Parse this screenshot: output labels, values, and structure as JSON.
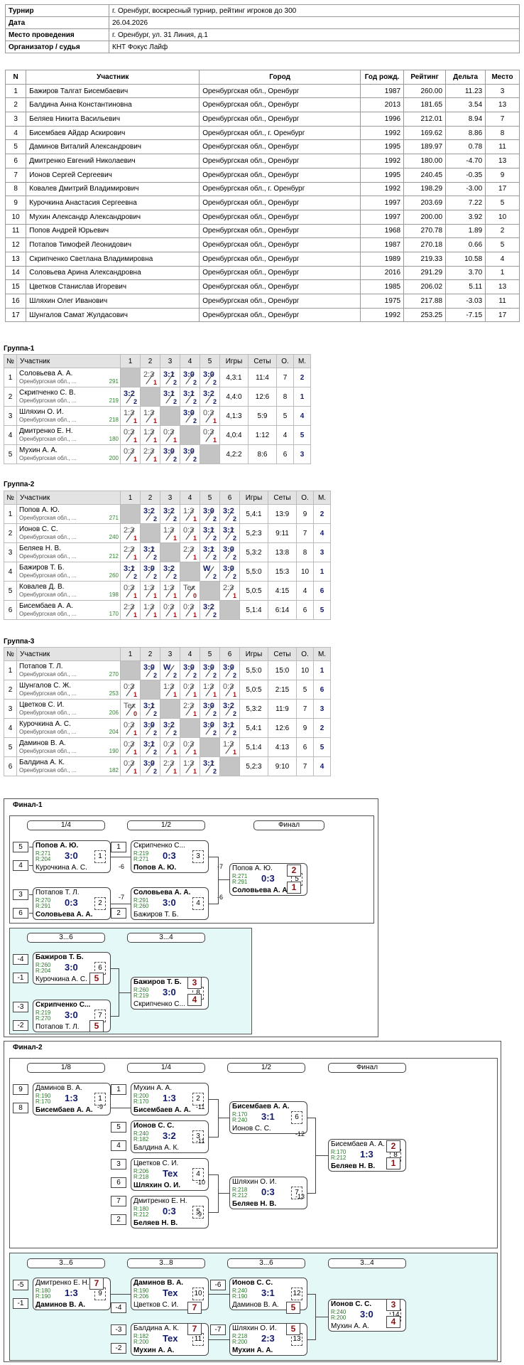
{
  "info": [
    [
      "Турнир",
      "г. Оренбург, воскресный турнир, рейтинг игроков до 300"
    ],
    [
      "Дата",
      "26.04.2026"
    ],
    [
      "Место проведения",
      "г. Оренбург, ул. 31 Линия, д.1"
    ],
    [
      "Организатор / судья",
      "КНТ Фокус Лайф"
    ]
  ],
  "participants": {
    "headers": [
      "N",
      "Участник",
      "Город",
      "Год рожд.",
      "Рейтинг",
      "Дельта",
      "Место"
    ],
    "rows": [
      [
        "1",
        "Бажиров Талгат Бисембаевич",
        "Оренбургская обл., Оренбург",
        "1987",
        "260.00",
        "11.23",
        "3"
      ],
      [
        "2",
        "Балдина Анна Константиновна",
        "Оренбургская обл., Оренбург",
        "2013",
        "181.65",
        "3.54",
        "13"
      ],
      [
        "3",
        "Беляев Никита Васильевич",
        "Оренбургская обл., Оренбург",
        "1996",
        "212.01",
        "8.94",
        "7"
      ],
      [
        "4",
        "Бисембаев Айдар Аскирович",
        "Оренбургская обл., г. Оренбург",
        "1992",
        "169.62",
        "8.86",
        "8"
      ],
      [
        "5",
        "Даминов Виталий Александрович",
        "Оренбургская обл., Оренбург",
        "1995",
        "189.97",
        "0.78",
        "11"
      ],
      [
        "6",
        "Дмитренко Евгений Николаевич",
        "Оренбургская обл., Оренбург",
        "1992",
        "180.00",
        "-4.70",
        "13"
      ],
      [
        "7",
        "Ионов Сергей Сергеевич",
        "Оренбургская обл., Оренбург",
        "1995",
        "240.45",
        "-0.35",
        "9"
      ],
      [
        "8",
        "Ковалев Дмитрий Владимирович",
        "Оренбургская обл., г. Оренбург",
        "1992",
        "198.29",
        "-3.00",
        "17"
      ],
      [
        "9",
        "Курочкина Анастасия Сергеевна",
        "Оренбургская обл., Оренбург",
        "1997",
        "203.69",
        "7.22",
        "5"
      ],
      [
        "10",
        "Мухин Александр Александрович",
        "Оренбургская обл., Оренбург",
        "1997",
        "200.00",
        "3.92",
        "10"
      ],
      [
        "11",
        "Попов Андрей Юрьевич",
        "Оренбургская обл., Оренбург",
        "1968",
        "270.78",
        "1.89",
        "2"
      ],
      [
        "12",
        "Потапов Тимофей Леонидович",
        "Оренбургская обл., Оренбург",
        "1987",
        "270.18",
        "0.66",
        "5"
      ],
      [
        "13",
        "Скрипченко Светлана Владимировна",
        "Оренбургская обл., Оренбург",
        "1989",
        "219.33",
        "10.58",
        "4"
      ],
      [
        "14",
        "Соловьева Арина Александровна",
        "Оренбургская обл., Оренбург",
        "2016",
        "291.29",
        "3.70",
        "1"
      ],
      [
        "15",
        "Цветков Станислав Игоревич",
        "Оренбургская обл., Оренбург",
        "1985",
        "206.02",
        "5.11",
        "13"
      ],
      [
        "16",
        "Шляхин Олег Иванович",
        "Оренбургская обл., Оренбург",
        "1975",
        "217.88",
        "-3.03",
        "11"
      ],
      [
        "17",
        "Шунгалов Самат Жулдасович",
        "Оренбургская обл., Оренбург",
        "1992",
        "253.25",
        "-7.15",
        "17"
      ]
    ]
  },
  "groups": [
    {
      "title": "Группа-1",
      "headers": [
        "№",
        "Участник",
        "1",
        "2",
        "3",
        "4",
        "5",
        "Игры",
        "Сеты",
        "О.",
        "М."
      ],
      "rows": [
        {
          "n": "1",
          "name": "Соловьева А. А.",
          "reg": "Оренбургская обл., ...",
          "rating": "291",
          "cells": [
            null,
            [
              "2:3",
              "1"
            ],
            [
              "3:1",
              "2"
            ],
            [
              "3:0",
              "2"
            ],
            [
              "3:0",
              "2"
            ]
          ],
          "games": "4,3:1",
          "sets": "11:4",
          "pts": "7",
          "place": "2"
        },
        {
          "n": "2",
          "name": "Скрипченко С. В.",
          "reg": "Оренбургская обл., ...",
          "rating": "219",
          "cells": [
            [
              "3:2",
              "2"
            ],
            null,
            [
              "3:1",
              "2"
            ],
            [
              "3:1",
              "2"
            ],
            [
              "3:2",
              "2"
            ]
          ],
          "games": "4,4:0",
          "sets": "12:6",
          "pts": "8",
          "place": "1"
        },
        {
          "n": "3",
          "name": "Шляхин О. И.",
          "reg": "Оренбургская обл., ...",
          "rating": "218",
          "cells": [
            [
              "1:3",
              "1"
            ],
            [
              "1:3",
              "1"
            ],
            null,
            [
              "3:0",
              "2"
            ],
            [
              "0:3",
              "1"
            ]
          ],
          "games": "4,1:3",
          "sets": "5:9",
          "pts": "5",
          "place": "4"
        },
        {
          "n": "4",
          "name": "Дмитренко Е. Н.",
          "reg": "Оренбургская обл., ...",
          "rating": "180",
          "cells": [
            [
              "0:3",
              "1"
            ],
            [
              "1:3",
              "1"
            ],
            [
              "0:3",
              "1"
            ],
            null,
            [
              "0:3",
              "1"
            ]
          ],
          "games": "4,0:4",
          "sets": "1:12",
          "pts": "4",
          "place": "5"
        },
        {
          "n": "5",
          "name": "Мухин А. А.",
          "reg": "Оренбургская обл., ...",
          "rating": "200",
          "cells": [
            [
              "0:3",
              "1"
            ],
            [
              "2:3",
              "1"
            ],
            [
              "3:0",
              "2"
            ],
            [
              "3:0",
              "2"
            ],
            null
          ],
          "games": "4,2:2",
          "sets": "8:6",
          "pts": "6",
          "place": "3"
        }
      ]
    },
    {
      "title": "Группа-2",
      "headers": [
        "№",
        "Участник",
        "1",
        "2",
        "3",
        "4",
        "5",
        "6",
        "Игры",
        "Сеты",
        "О.",
        "М."
      ],
      "rows": [
        {
          "n": "1",
          "name": "Попов А. Ю.",
          "reg": "Оренбургская обл., ...",
          "rating": "271",
          "cells": [
            null,
            [
              "3:2",
              "2"
            ],
            [
              "3:2",
              "2"
            ],
            [
              "1:3",
              "1"
            ],
            [
              "3:0",
              "2"
            ],
            [
              "3:2",
              "2"
            ]
          ],
          "games": "5,4:1",
          "sets": "13:9",
          "pts": "9",
          "place": "2"
        },
        {
          "n": "2",
          "name": "Ионов С. С.",
          "reg": "Оренбургская обл., ...",
          "rating": "240",
          "cells": [
            [
              "2:3",
              "1"
            ],
            null,
            [
              "1:3",
              "1"
            ],
            [
              "0:3",
              "1"
            ],
            [
              "3:1",
              "2"
            ],
            [
              "3:1",
              "2"
            ]
          ],
          "games": "5,2:3",
          "sets": "9:11",
          "pts": "7",
          "place": "4"
        },
        {
          "n": "3",
          "name": "Беляев Н. В.",
          "reg": "Оренбургская обл., ...",
          "rating": "212",
          "cells": [
            [
              "2:3",
              "1"
            ],
            [
              "3:1",
              "2"
            ],
            null,
            [
              "2:3",
              "1"
            ],
            [
              "3:1",
              "2"
            ],
            [
              "3:0",
              "2"
            ]
          ],
          "games": "5,3:2",
          "sets": "13:8",
          "pts": "8",
          "place": "3"
        },
        {
          "n": "4",
          "name": "Бажиров Т. Б.",
          "reg": "Оренбургская обл., ...",
          "rating": "260",
          "cells": [
            [
              "3:1",
              "2"
            ],
            [
              "3:0",
              "2"
            ],
            [
              "3:2",
              "2"
            ],
            null,
            [
              "W",
              "2"
            ],
            [
              "3:0",
              "2"
            ]
          ],
          "games": "5,5:0",
          "sets": "15:3",
          "pts": "10",
          "place": "1"
        },
        {
          "n": "5",
          "name": "Ковалев Д. В.",
          "reg": "Оренбургская обл., ...",
          "rating": "198",
          "cells": [
            [
              "0:3",
              "1"
            ],
            [
              "1:3",
              "1"
            ],
            [
              "1:3",
              "1"
            ],
            [
              "Tex",
              "0"
            ],
            null,
            [
              "2:3",
              "1"
            ]
          ],
          "games": "5,0:5",
          "sets": "4:15",
          "pts": "4",
          "place": "6"
        },
        {
          "n": "6",
          "name": "Бисембаев А. А.",
          "reg": "Оренбургская обл., ...",
          "rating": "170",
          "cells": [
            [
              "2:3",
              "1"
            ],
            [
              "1:3",
              "1"
            ],
            [
              "0:3",
              "1"
            ],
            [
              "0:3",
              "1"
            ],
            [
              "3:2",
              "2"
            ],
            null
          ],
          "games": "5,1:4",
          "sets": "6:14",
          "pts": "6",
          "place": "5"
        }
      ]
    },
    {
      "title": "Группа-3",
      "headers": [
        "№",
        "Участник",
        "1",
        "2",
        "3",
        "4",
        "5",
        "6",
        "Игры",
        "Сеты",
        "О.",
        "М."
      ],
      "rows": [
        {
          "n": "1",
          "name": "Потапов Т. Л.",
          "reg": "Оренбургская обл., ...",
          "rating": "270",
          "cells": [
            null,
            [
              "3:0",
              "2"
            ],
            [
              "W",
              "2"
            ],
            [
              "3:0",
              "2"
            ],
            [
              "3:0",
              "2"
            ],
            [
              "3:0",
              "2"
            ]
          ],
          "games": "5,5:0",
          "sets": "15:0",
          "pts": "10",
          "place": "1"
        },
        {
          "n": "2",
          "name": "Шунгалов С. Ж.",
          "reg": "Оренбургская обл., ...",
          "rating": "253",
          "cells": [
            [
              "0:3",
              "1"
            ],
            null,
            [
              "1:3",
              "1"
            ],
            [
              "0:3",
              "1"
            ],
            [
              "1:3",
              "1"
            ],
            [
              "0:3",
              "1"
            ]
          ],
          "games": "5,0:5",
          "sets": "2:15",
          "pts": "5",
          "place": "6"
        },
        {
          "n": "3",
          "name": "Цветков С. И.",
          "reg": "Оренбургская обл., ...",
          "rating": "206",
          "cells": [
            [
              "Tex",
              "0"
            ],
            [
              "3:1",
              "2"
            ],
            null,
            [
              "2:3",
              "1"
            ],
            [
              "3:0",
              "2"
            ],
            [
              "3:2",
              "2"
            ]
          ],
          "games": "5,3:2",
          "sets": "11:9",
          "pts": "7",
          "place": "3"
        },
        {
          "n": "4",
          "name": "Курочкина А. С.",
          "reg": "Оренбургская обл., ...",
          "rating": "204",
          "cells": [
            [
              "0:3",
              "1"
            ],
            [
              "3:0",
              "2"
            ],
            [
              "3:2",
              "2"
            ],
            null,
            [
              "3:0",
              "2"
            ],
            [
              "3:1",
              "2"
            ]
          ],
          "games": "5,4:1",
          "sets": "12:6",
          "pts": "9",
          "place": "2"
        },
        {
          "n": "5",
          "name": "Даминов В. А.",
          "reg": "Оренбургская обл., ...",
          "rating": "190",
          "cells": [
            [
              "0:3",
              "1"
            ],
            [
              "3:1",
              "2"
            ],
            [
              "0:3",
              "1"
            ],
            [
              "0:3",
              "1"
            ],
            null,
            [
              "1:3",
              "1"
            ]
          ],
          "games": "5,1:4",
          "sets": "4:13",
          "pts": "6",
          "place": "5"
        },
        {
          "n": "6",
          "name": "Балдина А. К.",
          "reg": "Оренбургская обл., ...",
          "rating": "182",
          "cells": [
            [
              "0:3",
              "1"
            ],
            [
              "3:0",
              "2"
            ],
            [
              "2:3",
              "1"
            ],
            [
              "1:3",
              "1"
            ],
            [
              "3:1",
              "2"
            ],
            null
          ],
          "games": "5,2:3",
          "sets": "9:10",
          "pts": "7",
          "place": "4"
        }
      ]
    }
  ],
  "final1": {
    "title": "Финал-1",
    "rounds": [
      "1/4",
      "1/2",
      "Финал"
    ],
    "rounds2": [
      "3...6",
      "3...4"
    ],
    "m": [
      {
        "top": "Попов А. Ю.",
        "bot": "Курочкина А. С.",
        "r1": "R:271",
        "r2": "R:204",
        "score": "3:0",
        "num": "1",
        "win": "top"
      },
      {
        "top": "Потапов Т. Л.",
        "bot": "Соловьева А. А.",
        "r1": "R:270",
        "r2": "R:291",
        "score": "0:3",
        "num": "2",
        "win": "bot"
      },
      {
        "top": "Скрипченко С...",
        "bot": "Попов А. Ю.",
        "r1": "R:219",
        "r2": "R:271",
        "score": "0:3",
        "num": "3",
        "win": "bot"
      },
      {
        "top": "Соловьева А. А.",
        "bot": "Бажиров Т. Б.",
        "r1": "R:291",
        "r2": "R:260",
        "score": "3:0",
        "num": "4",
        "win": "top"
      },
      {
        "top": "Попов А. Ю.",
        "bot": "Соловьева А. А.",
        "r1": "R:271",
        "r2": "R:291",
        "score": "0:3",
        "num": "5",
        "win": "bot"
      },
      {
        "top": "Бажиров Т. Б.",
        "bot": "Курочкина А. С.",
        "r1": "R:260",
        "r2": "R:204",
        "score": "3:0",
        "num": "6",
        "win": "top"
      },
      {
        "top": "Скрипченко С...",
        "bot": "Потапов Т. Л.",
        "r1": "R:219",
        "r2": "R:270",
        "score": "3:0",
        "num": "7",
        "win": "top"
      },
      {
        "top": "Бажиров Т. Б.",
        "bot": "Скрипченко С...",
        "r1": "R:260",
        "r2": "R:219",
        "score": "3:0",
        "num": "8",
        "win": "top"
      }
    ],
    "seeds": [
      "5",
      "4",
      "3",
      "6",
      "1",
      "2",
      "-4",
      "-1",
      "-3",
      "-2"
    ],
    "refs": [
      "-6",
      "-7",
      "-7",
      "-6"
    ],
    "places": [
      "2",
      "1",
      "5",
      "5",
      "3",
      "4"
    ]
  },
  "final2": {
    "title": "Финал-2",
    "rounds": [
      "1/8",
      "1/4",
      "1/2",
      "Финал"
    ],
    "rounds2": [
      "3...6",
      "3...8",
      "3...6",
      "3...4"
    ],
    "m": [
      {
        "top": "Даминов В. А.",
        "bot": "Бисембаев А. А.",
        "r1": "R:190",
        "r2": "R:170",
        "score": "1:3",
        "num": "1",
        "win": "bot"
      },
      {
        "top": "Мухин А. А.",
        "bot": "Бисембаев А. А.",
        "r1": "R:200",
        "r2": "R:170",
        "score": "1:3",
        "num": "2",
        "win": "bot"
      },
      {
        "top": "Ионов С. С.",
        "bot": "Балдина А. К.",
        "r1": "R:240",
        "r2": "R:182",
        "score": "3:2",
        "num": "3",
        "win": "top"
      },
      {
        "top": "Цветков С. И.",
        "bot": "Шляхин О. И.",
        "r1": "R:206",
        "r2": "R:218",
        "score": "Tex",
        "num": "4",
        "win": "bot"
      },
      {
        "top": "Дмитренко Е. Н.",
        "bot": "Беляев Н. В.",
        "r1": "R:180",
        "r2": "R:212",
        "score": "0:3",
        "num": "5",
        "win": "bot"
      },
      {
        "top": "Бисембаев А. А.",
        "bot": "Ионов С. С.",
        "r1": "R:170",
        "r2": "R:240",
        "score": "3:1",
        "num": "6",
        "win": "top"
      },
      {
        "top": "Шляхин О. И.",
        "bot": "Беляев Н. В.",
        "r1": "R:218",
        "r2": "R:212",
        "score": "0:3",
        "num": "7",
        "win": "bot"
      },
      {
        "top": "Бисембаев А. А.",
        "bot": "Беляев Н. В.",
        "r1": "R:170",
        "r2": "R:212",
        "score": "1:3",
        "num": "8",
        "win": "bot"
      },
      {
        "top": "Дмитренко Е. Н.",
        "bot": "Даминов В. А.",
        "r1": "R:180",
        "r2": "R:190",
        "score": "1:3",
        "num": "9",
        "win": "bot"
      },
      {
        "top": "Даминов В. А.",
        "bot": "Цветков С. И.",
        "r1": "R:190",
        "r2": "R:206",
        "score": "Tex",
        "num": "10",
        "win": "top"
      },
      {
        "top": "Балдина А. К.",
        "bot": "Мухин А. А.",
        "r1": "R:182",
        "r2": "R:200",
        "score": "Tex",
        "num": "11",
        "win": "bot"
      },
      {
        "top": "Ионов С. С.",
        "bot": "Даминов В. А.",
        "r1": "R:240",
        "r2": "R:190",
        "score": "3:1",
        "num": "12",
        "win": "top"
      },
      {
        "top": "Шляхин О. И.",
        "bot": "Мухин А. А.",
        "r1": "R:218",
        "r2": "R:200",
        "score": "2:3",
        "num": "13",
        "win": "bot"
      },
      {
        "top": "Ионов С. С.",
        "bot": "Мухин А. А.",
        "r1": "R:240",
        "r2": "R:200",
        "score": "3:0",
        "num": "14",
        "win": "top"
      }
    ],
    "seeds": [
      "9",
      "8",
      "1",
      "5",
      "4",
      "3",
      "6",
      "7",
      "2",
      "-5",
      "-1",
      "-4",
      "-3",
      "-2",
      "-6",
      "-7"
    ],
    "refs": [
      "-9",
      "-11",
      "-11",
      "-10",
      "-9",
      "-12",
      "-13"
    ],
    "places": [
      "2",
      "1",
      "7",
      "7",
      "7",
      "5",
      "5",
      "3",
      "4"
    ]
  }
}
